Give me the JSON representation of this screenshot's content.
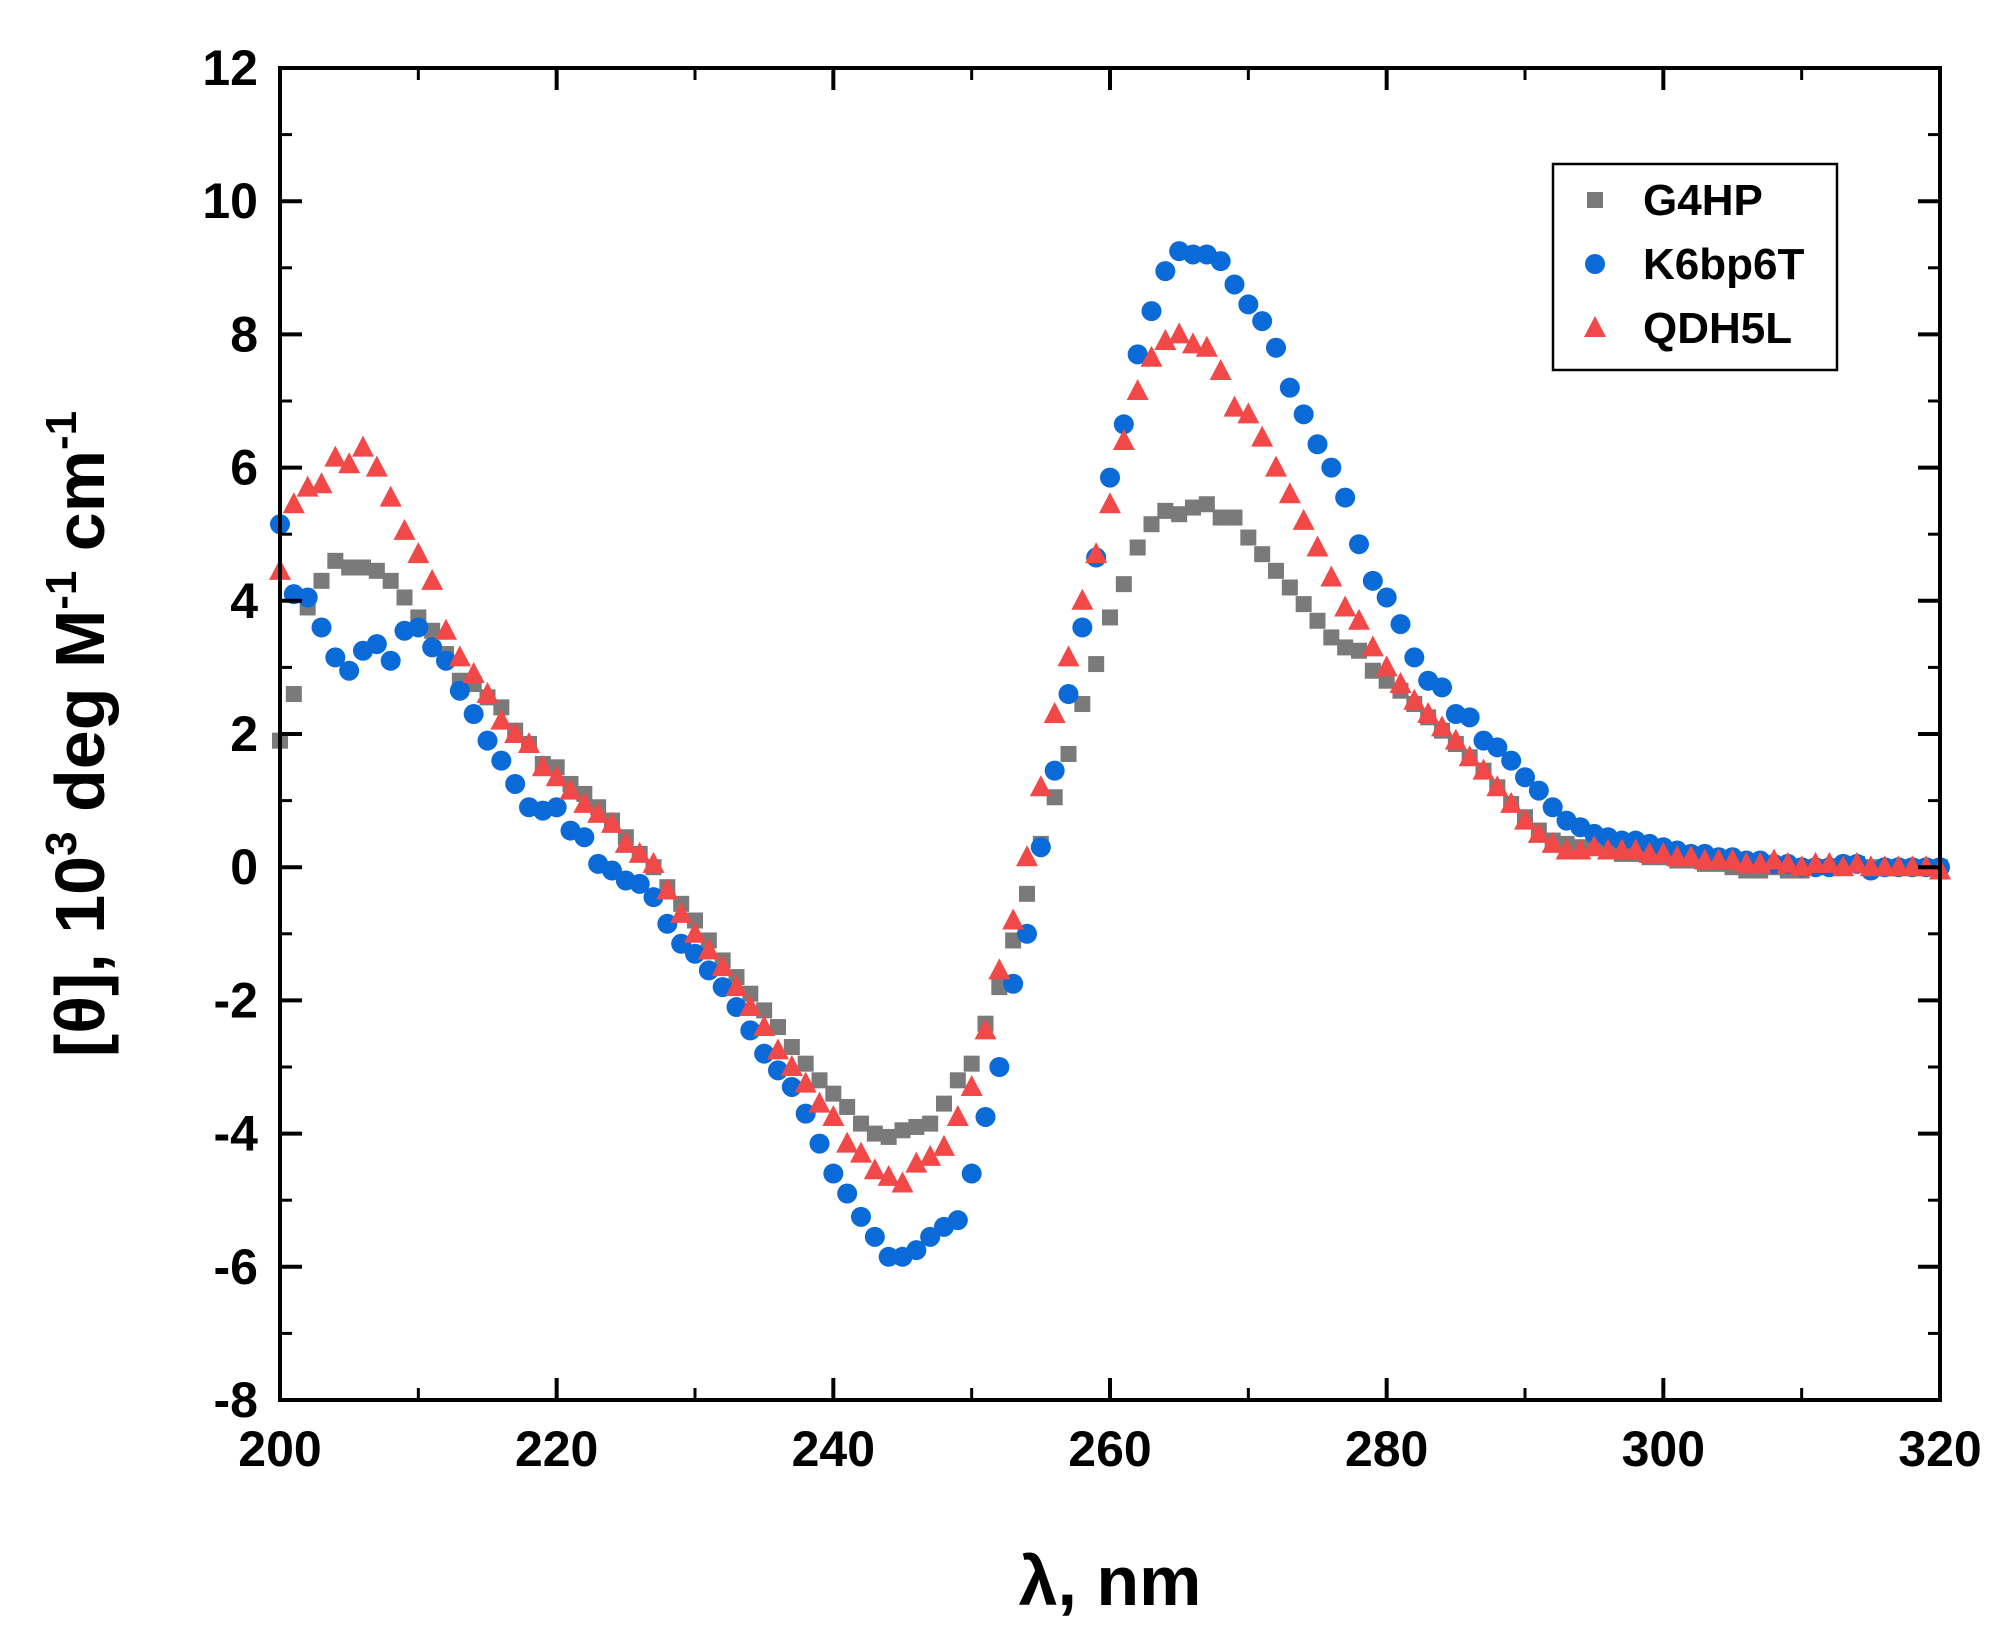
{
  "chart_data": {
    "type": "scatter",
    "title": "",
    "xlabel": "λ, nm",
    "ylabel": "[θ], 10³ deg M⁻¹ cm⁻¹",
    "ylabel_parts": [
      "[θ], 10",
      "3",
      " deg M",
      "-1",
      " cm",
      "-1"
    ],
    "xlim": [
      200,
      320
    ],
    "ylim": [
      -8,
      12
    ],
    "xticks": [
      200,
      220,
      240,
      260,
      280,
      300,
      320
    ],
    "yticks": [
      -8,
      -6,
      -4,
      -2,
      0,
      2,
      4,
      6,
      8,
      10,
      12
    ],
    "grid": false,
    "legend_position": "top-right",
    "series": [
      {
        "name": "G4HP",
        "marker": "square",
        "color": "#7a7a7a",
        "x": [
          200,
          201,
          202,
          203,
          204,
          205,
          206,
          207,
          208,
          209,
          210,
          211,
          212,
          213,
          214,
          215,
          216,
          217,
          218,
          219,
          220,
          221,
          222,
          223,
          224,
          225,
          226,
          227,
          228,
          229,
          230,
          231,
          232,
          233,
          234,
          235,
          236,
          237,
          238,
          239,
          240,
          241,
          242,
          243,
          244,
          245,
          246,
          247,
          248,
          249,
          250,
          251,
          252,
          253,
          254,
          255,
          256,
          257,
          258,
          259,
          260,
          261,
          262,
          263,
          264,
          265,
          266,
          267,
          268,
          269,
          270,
          271,
          272,
          273,
          274,
          275,
          276,
          277,
          278,
          279,
          280,
          281,
          282,
          283,
          284,
          285,
          286,
          287,
          288,
          289,
          290,
          291,
          292,
          293,
          294,
          295,
          296,
          297,
          298,
          299,
          300,
          301,
          302,
          303,
          304,
          305,
          306,
          307,
          308,
          309,
          310,
          311,
          312,
          313,
          314,
          315,
          316,
          317,
          318,
          319,
          320
        ],
        "y": [
          1.9,
          2.6,
          3.9,
          4.3,
          4.6,
          4.5,
          4.5,
          4.45,
          4.3,
          4.05,
          3.75,
          3.55,
          3.2,
          2.8,
          2.75,
          2.55,
          2.4,
          2.05,
          1.85,
          1.55,
          1.5,
          1.25,
          1.1,
          0.9,
          0.7,
          0.45,
          0.2,
          0.0,
          -0.3,
          -0.55,
          -0.8,
          -1.1,
          -1.4,
          -1.65,
          -1.9,
          -2.15,
          -2.4,
          -2.7,
          -2.95,
          -3.2,
          -3.4,
          -3.6,
          -3.85,
          -4.0,
          -4.05,
          -3.95,
          -3.9,
          -3.85,
          -3.55,
          -3.2,
          -2.95,
          -2.35,
          -1.8,
          -1.1,
          -0.4,
          0.35,
          1.05,
          1.7,
          2.45,
          3.05,
          3.75,
          4.25,
          4.8,
          5.15,
          5.35,
          5.3,
          5.4,
          5.45,
          5.25,
          5.25,
          4.95,
          4.7,
          4.45,
          4.2,
          3.95,
          3.7,
          3.45,
          3.3,
          3.25,
          2.95,
          2.8,
          2.65,
          2.45,
          2.25,
          2.05,
          1.85,
          1.65,
          1.45,
          1.2,
          0.95,
          0.75,
          0.55,
          0.4,
          0.35,
          0.3,
          0.3,
          0.25,
          0.2,
          0.2,
          0.15,
          0.15,
          0.1,
          0.1,
          0.05,
          0.05,
          0.0,
          -0.05,
          -0.05,
          0.0,
          -0.05,
          -0.05,
          0.0,
          0.0,
          0.0,
          0.05,
          0.0,
          0.0,
          0.0,
          0.0,
          0.0,
          0.0
        ]
      },
      {
        "name": "K6bp6T",
        "marker": "circle",
        "color": "#0a6ad8",
        "x": [
          200,
          201,
          202,
          203,
          204,
          205,
          206,
          207,
          208,
          209,
          210,
          211,
          212,
          213,
          214,
          215,
          216,
          217,
          218,
          219,
          220,
          221,
          222,
          223,
          224,
          225,
          226,
          227,
          228,
          229,
          230,
          231,
          232,
          233,
          234,
          235,
          236,
          237,
          238,
          239,
          240,
          241,
          242,
          243,
          244,
          245,
          246,
          247,
          248,
          249,
          250,
          251,
          252,
          253,
          254,
          255,
          256,
          257,
          258,
          259,
          260,
          261,
          262,
          263,
          264,
          265,
          266,
          267,
          268,
          269,
          270,
          271,
          272,
          273,
          274,
          275,
          276,
          277,
          278,
          279,
          280,
          281,
          282,
          283,
          284,
          285,
          286,
          287,
          288,
          289,
          290,
          291,
          292,
          293,
          294,
          295,
          296,
          297,
          298,
          299,
          300,
          301,
          302,
          303,
          304,
          305,
          306,
          307,
          308,
          309,
          310,
          311,
          312,
          313,
          314,
          315,
          316,
          317,
          318,
          319,
          320
        ],
        "y": [
          5.15,
          4.1,
          4.05,
          3.6,
          3.15,
          2.95,
          3.25,
          3.35,
          3.1,
          3.55,
          3.6,
          3.3,
          3.1,
          2.65,
          2.3,
          1.9,
          1.6,
          1.25,
          0.9,
          0.85,
          0.9,
          0.55,
          0.45,
          0.05,
          -0.05,
          -0.2,
          -0.25,
          -0.45,
          -0.85,
          -1.15,
          -1.3,
          -1.55,
          -1.8,
          -2.1,
          -2.45,
          -2.8,
          -3.05,
          -3.3,
          -3.7,
          -4.15,
          -4.6,
          -4.9,
          -5.25,
          -5.55,
          -5.85,
          -5.85,
          -5.75,
          -5.55,
          -5.4,
          -5.3,
          -4.6,
          -3.75,
          -3.0,
          -1.75,
          -1.0,
          0.3,
          1.45,
          2.6,
          3.6,
          4.65,
          5.85,
          6.65,
          7.7,
          8.35,
          8.95,
          9.25,
          9.2,
          9.2,
          9.1,
          8.75,
          8.45,
          8.2,
          7.8,
          7.2,
          6.8,
          6.35,
          6.0,
          5.55,
          4.85,
          4.3,
          4.05,
          3.65,
          3.15,
          2.8,
          2.7,
          2.3,
          2.25,
          1.9,
          1.8,
          1.6,
          1.35,
          1.15,
          0.9,
          0.7,
          0.6,
          0.5,
          0.45,
          0.4,
          0.4,
          0.35,
          0.3,
          0.25,
          0.2,
          0.2,
          0.15,
          0.15,
          0.1,
          0.1,
          0.05,
          0.05,
          0.0,
          0.0,
          0.0,
          0.05,
          0.05,
          -0.05,
          0.0,
          0.0,
          0.0,
          0.0,
          0.0
        ]
      },
      {
        "name": "QDH5L",
        "marker": "triangle",
        "color": "#f24848",
        "x": [
          200,
          201,
          202,
          203,
          204,
          205,
          206,
          207,
          208,
          209,
          210,
          211,
          212,
          213,
          214,
          215,
          216,
          217,
          218,
          219,
          220,
          221,
          222,
          223,
          224,
          225,
          226,
          227,
          228,
          229,
          230,
          231,
          232,
          233,
          234,
          235,
          236,
          237,
          238,
          239,
          240,
          241,
          242,
          243,
          244,
          245,
          246,
          247,
          248,
          249,
          250,
          251,
          252,
          253,
          254,
          255,
          256,
          257,
          258,
          259,
          260,
          261,
          262,
          263,
          264,
          265,
          266,
          267,
          268,
          269,
          270,
          271,
          272,
          273,
          274,
          275,
          276,
          277,
          278,
          279,
          280,
          281,
          282,
          283,
          284,
          285,
          286,
          287,
          288,
          289,
          290,
          291,
          292,
          293,
          294,
          295,
          296,
          297,
          298,
          299,
          300,
          301,
          302,
          303,
          304,
          305,
          306,
          307,
          308,
          309,
          310,
          311,
          312,
          313,
          314,
          315,
          316,
          317,
          318,
          319,
          320
        ],
        "y": [
          4.45,
          5.45,
          5.7,
          5.75,
          6.15,
          6.05,
          6.3,
          6.0,
          5.55,
          5.05,
          4.7,
          4.3,
          3.55,
          3.15,
          2.9,
          2.6,
          2.2,
          2.0,
          1.85,
          1.5,
          1.35,
          1.15,
          0.95,
          0.8,
          0.65,
          0.35,
          0.2,
          0.05,
          -0.35,
          -0.7,
          -1.0,
          -1.25,
          -1.5,
          -1.8,
          -2.1,
          -2.4,
          -2.75,
          -3.0,
          -3.25,
          -3.55,
          -3.75,
          -4.15,
          -4.3,
          -4.55,
          -4.65,
          -4.75,
          -4.45,
          -4.35,
          -4.2,
          -3.75,
          -3.3,
          -2.45,
          -1.55,
          -0.8,
          0.15,
          1.2,
          2.3,
          3.15,
          4.0,
          4.7,
          5.45,
          6.4,
          7.15,
          7.65,
          7.9,
          8.0,
          7.85,
          7.8,
          7.45,
          6.9,
          6.8,
          6.45,
          6.0,
          5.6,
          5.2,
          4.8,
          4.35,
          3.9,
          3.7,
          3.3,
          3.0,
          2.75,
          2.5,
          2.3,
          2.1,
          1.9,
          1.65,
          1.45,
          1.2,
          0.95,
          0.7,
          0.5,
          0.35,
          0.25,
          0.25,
          0.3,
          0.25,
          0.25,
          0.25,
          0.2,
          0.2,
          0.15,
          0.15,
          0.1,
          0.1,
          0.1,
          0.05,
          0.05,
          0.1,
          0.05,
          0.0,
          0.05,
          0.05,
          0.0,
          0.05,
          0.0,
          0.0,
          0.0,
          0.0,
          0.0,
          -0.05
        ]
      }
    ]
  }
}
